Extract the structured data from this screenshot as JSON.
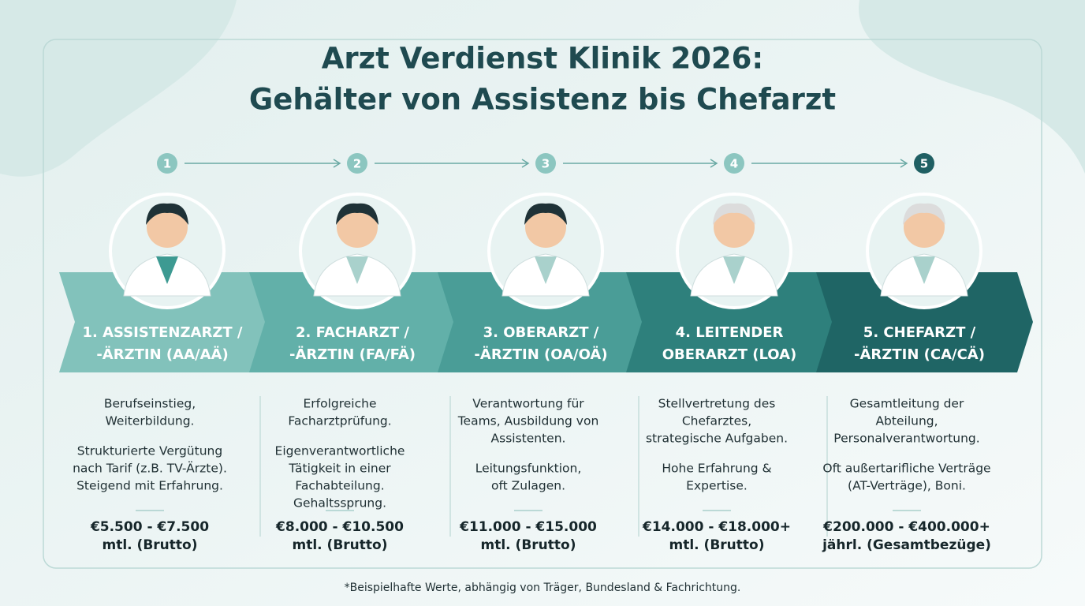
{
  "header": {
    "title": [
      "Arzt Verdienst Klinik 2026:",
      "Gehälter von Assistenz bis Chefarzt"
    ]
  },
  "steps": [
    {
      "number": "1",
      "title": [
        "1. ASSISTENZARZT /",
        "-ÄRZTIN (AA/AÄ)"
      ],
      "description": [
        [
          "Berufseinstieg,",
          "Weiterbildung."
        ],
        [
          "Strukturierte Vergütung",
          "nach Tarif (z.B. TV-Ärzte).",
          "Steigend mit Erfahrung."
        ]
      ],
      "salary": "€5.500 - €7.500",
      "period": "mtl. (Brutto)"
    },
    {
      "number": "2",
      "title": [
        "2. FACHARZT /",
        "-ÄRZTIN (FA/FÄ)"
      ],
      "description": [
        [
          "Erfolgreiche",
          "Facharztprüfung."
        ],
        [
          "Eigenverantwortliche",
          "Tätigkeit in einer",
          "Fachabteilung.",
          "Gehaltssprung."
        ]
      ],
      "salary": "€8.000 - €10.500",
      "period": "mtl. (Brutto)"
    },
    {
      "number": "3",
      "title": [
        "3. OBERARZT /",
        "-ÄRZTIN (OA/OÄ)"
      ],
      "description": [
        [
          "Verantwortung für",
          "Teams, Ausbildung von",
          "Assistenten."
        ],
        [
          "Leitungsfunktion,",
          "oft Zulagen."
        ]
      ],
      "salary": "€11.000 - €15.000",
      "period": "mtl. (Brutto)"
    },
    {
      "number": "4",
      "title": [
        "4. LEITENDER",
        "OBERARZT (LOA)"
      ],
      "description": [
        [
          "Stellvertretung des",
          "Chefarztes,",
          "strategische Aufgaben."
        ],
        [
          "Hohe Erfahrung &",
          "Expertise."
        ]
      ],
      "salary": "€14.000 - €18.000+",
      "period": "mtl. (Brutto)"
    },
    {
      "number": "5",
      "title": [
        "5. CHEFARZT /",
        "-ÄRZTIN (CA/CÄ)"
      ],
      "description": [
        [
          "Gesamtleitung der",
          "Abteilung,",
          "Personalverantwortung."
        ],
        [
          "Oft außertarifliche Verträge",
          "(AT-Verträge), Boni."
        ]
      ],
      "salary": "€200.000 - €400.000+",
      "period": "jährl. (Gesamtbezüge)"
    }
  ],
  "footnote": "*Beispielhafte Werte, abhängig von Träger, Bundesland & Fachrichtung."
}
